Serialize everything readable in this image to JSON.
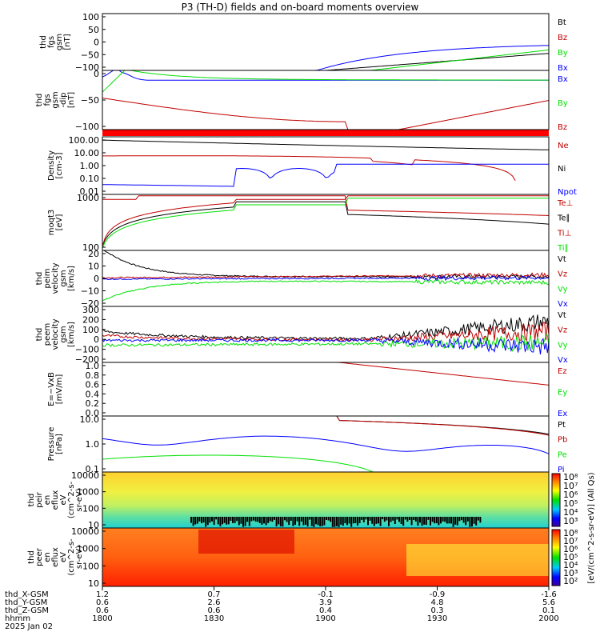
{
  "title": "P3 (TH-D) fields and on-board moments overview",
  "date": "2025 Jan 02",
  "colors": {
    "black": "#000000",
    "red": "#c00000",
    "green": "#00e000",
    "blue": "#0000ff",
    "redline": "#ff0000"
  },
  "footer": {
    "rows": [
      {
        "label": "thd_X-GSM",
        "values": [
          "1.2",
          "0.7",
          "-0.1",
          "-0.9",
          "-1.6"
        ]
      },
      {
        "label": "thd_Y-GSM",
        "values": [
          "0.6",
          "2.6",
          "3.9",
          "4.8",
          "5.6"
        ]
      },
      {
        "label": "thd_Z-GSM",
        "values": [
          "0.6",
          "0.6",
          "0.4",
          "0.3",
          "0.1"
        ]
      },
      {
        "label": "hhmm",
        "values": [
          "1800",
          "1830",
          "1900",
          "1930",
          "2000"
        ]
      }
    ]
  },
  "chart_data": [
    {
      "type": "line",
      "id": "fgs1",
      "ylabel": [
        "thd",
        "fgs",
        "gsm",
        "[nT]"
      ],
      "ylim": [
        -100,
        100
      ],
      "yticks": [
        "100",
        "50",
        "0",
        "−50",
        "−100"
      ],
      "series": [
        {
          "name": "Bt",
          "color": "#000000"
        },
        {
          "name": "Bz",
          "color": "#c00000"
        },
        {
          "name": "By",
          "color": "#00e000"
        },
        {
          "name": "Bx",
          "color": "#0000ff"
        }
      ]
    },
    {
      "type": "line",
      "id": "fgs2",
      "ylabel": [
        "thd",
        "fgs",
        "gsm",
        "-dip",
        "[nT]"
      ],
      "ylim": [
        -125,
        25
      ],
      "yticks": [
        "0",
        "−50",
        "−100"
      ],
      "series": [
        {
          "name": "Bx",
          "color": "#0000ff"
        },
        {
          "name": "By",
          "color": "#00e000"
        },
        {
          "name": "Bz",
          "color": "#c00000"
        }
      ]
    },
    {
      "type": "line",
      "id": "density",
      "ylabel": [
        "Density",
        "[cm-3]"
      ],
      "scale": "log",
      "ylim": [
        0.003,
        200
      ],
      "yticks": [
        "100.00",
        "10.00",
        "1.00",
        "0.10",
        "0.01"
      ],
      "series": [
        {
          "name": "Ne",
          "color": "#c00000"
        },
        {
          "name": "Ni",
          "color": "#000000"
        },
        {
          "name": "Npot",
          "color": "#0000ff"
        }
      ]
    },
    {
      "type": "line",
      "id": "temp",
      "ylabel": [
        "moqt3",
        "[eV]"
      ],
      "scale": "log",
      "ylim": [
        20,
        4000
      ],
      "yticks": [
        "1000",
        "100"
      ],
      "series": [
        {
          "name": "Te⊥",
          "color": "#c00000"
        },
        {
          "name": "Te∥",
          "color": "#000000"
        },
        {
          "name": "Ti⊥",
          "color": "#c00000"
        },
        {
          "name": "Ti∥",
          "color": "#00e000"
        }
      ]
    },
    {
      "type": "line",
      "id": "veli",
      "ylabel": [
        "thd",
        "peim",
        "velocity",
        "gsm",
        "[km/s]"
      ],
      "ylim": [
        -20,
        20
      ],
      "yticks": [
        "20",
        "10",
        "0",
        "−10",
        "−20"
      ],
      "series": [
        {
          "name": "Vt",
          "color": "#000000"
        },
        {
          "name": "Vz",
          "color": "#c00000"
        },
        {
          "name": "Vy",
          "color": "#00e000"
        },
        {
          "name": "Vx",
          "color": "#0000ff"
        }
      ]
    },
    {
      "type": "line",
      "id": "vele",
      "ylabel": [
        "thd",
        "peem",
        "velocity",
        "gsm",
        "[km/s]"
      ],
      "ylim": [
        -200,
        320
      ],
      "yticks": [
        "300",
        "200",
        "100",
        "0",
        "−100",
        "−200"
      ],
      "series": [
        {
          "name": "Vt",
          "color": "#000000"
        },
        {
          "name": "Vz",
          "color": "#c00000"
        },
        {
          "name": "Vy",
          "color": "#00e000"
        },
        {
          "name": "Vx",
          "color": "#0000ff"
        }
      ]
    },
    {
      "type": "line",
      "id": "efield",
      "ylabel": [
        "E=−VxB",
        "[mV/m]"
      ],
      "ylim": [
        0,
        1
      ],
      "yticks": [
        "1.0",
        "0.8",
        "0.6",
        "0.4",
        "0.2",
        "0.0"
      ],
      "series": [
        {
          "name": "Ez",
          "color": "#c00000"
        },
        {
          "name": "Ey",
          "color": "#00e000"
        },
        {
          "name": "Ex",
          "color": "#0000ff"
        }
      ]
    },
    {
      "type": "line",
      "id": "pressure",
      "ylabel": [
        "Pressure",
        "[nPa]"
      ],
      "scale": "log",
      "ylim": [
        0.06,
        70
      ],
      "yticks": [
        "10.0",
        "1.0",
        "0.1"
      ],
      "series": [
        {
          "name": "Pt",
          "color": "#000000"
        },
        {
          "name": "Pb",
          "color": "#c00000"
        },
        {
          "name": "Pe",
          "color": "#00e000"
        },
        {
          "name": "Pi",
          "color": "#0000ff"
        }
      ]
    },
    {
      "type": "heatmap",
      "id": "peir",
      "ylabel": [
        "thd",
        "peir",
        "en",
        "eflux",
        "eV",
        "(cm^2-s-",
        "sr-eV)"
      ],
      "scale": "log",
      "yticks": [
        "10000",
        "1000",
        "100",
        "10"
      ]
    },
    {
      "type": "heatmap",
      "id": "peer",
      "ylabel": [
        "thd",
        "peer",
        "en",
        "eflux",
        "eV",
        "(cm^2-s-",
        "sr-eV)"
      ],
      "scale": "log",
      "yticks": [
        "10000",
        "1000",
        "100",
        "10"
      ]
    }
  ],
  "colorbar": {
    "label": "[eV/(cm^2-s-sr-eV)] (All Qs)",
    "ticks": [
      "10⁸",
      "10⁷",
      "10⁶",
      "10⁵",
      "10⁴",
      "10³"
    ]
  },
  "colorbar2": {
    "ticks": [
      "10⁸",
      "10⁷",
      "10⁶",
      "10⁵",
      "10⁴",
      "10³",
      "10²"
    ]
  }
}
